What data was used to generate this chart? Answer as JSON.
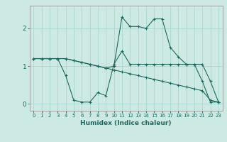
{
  "xlabel": "Humidex (Indice chaleur)",
  "background_color": "#cce9e4",
  "line_color": "#1a6b5e",
  "grid_color": "#a8d8d0",
  "xlim": [
    -0.5,
    23.5
  ],
  "ylim": [
    -0.18,
    2.6
  ],
  "yticks": [
    0,
    1,
    2
  ],
  "xticks": [
    0,
    1,
    2,
    3,
    4,
    5,
    6,
    7,
    8,
    9,
    10,
    11,
    12,
    13,
    14,
    15,
    16,
    17,
    18,
    19,
    20,
    21,
    22,
    23
  ],
  "line1_x": [
    0,
    1,
    2,
    3,
    4,
    5,
    6,
    7,
    8,
    9,
    10,
    11,
    12,
    13,
    14,
    15,
    16,
    17,
    18,
    19,
    20,
    21,
    22,
    23
  ],
  "line1_y": [
    1.2,
    1.2,
    1.2,
    1.2,
    0.75,
    0.1,
    0.05,
    0.05,
    0.3,
    0.22,
    1.05,
    1.4,
    1.05,
    1.05,
    1.05,
    1.05,
    1.05,
    1.05,
    1.05,
    1.05,
    1.05,
    1.05,
    0.6,
    0.05
  ],
  "line2_x": [
    0,
    1,
    2,
    3,
    4,
    5,
    6,
    7,
    8,
    9,
    10,
    11,
    12,
    13,
    14,
    15,
    16,
    17,
    18,
    19,
    20,
    21,
    22,
    23
  ],
  "line2_y": [
    1.2,
    1.2,
    1.2,
    1.2,
    1.2,
    1.15,
    1.1,
    1.05,
    1.0,
    0.95,
    1.0,
    2.3,
    2.05,
    2.05,
    2.0,
    2.25,
    2.25,
    1.5,
    1.25,
    1.05,
    1.05,
    0.6,
    0.05,
    0.05
  ],
  "line3_x": [
    0,
    1,
    2,
    3,
    4,
    5,
    6,
    7,
    8,
    9,
    10,
    11,
    12,
    13,
    14,
    15,
    16,
    17,
    18,
    19,
    20,
    21,
    22,
    23
  ],
  "line3_y": [
    1.2,
    1.2,
    1.2,
    1.2,
    1.2,
    1.15,
    1.1,
    1.05,
    1.0,
    0.95,
    0.9,
    0.85,
    0.8,
    0.75,
    0.7,
    0.65,
    0.6,
    0.55,
    0.5,
    0.45,
    0.4,
    0.35,
    0.1,
    0.05
  ]
}
